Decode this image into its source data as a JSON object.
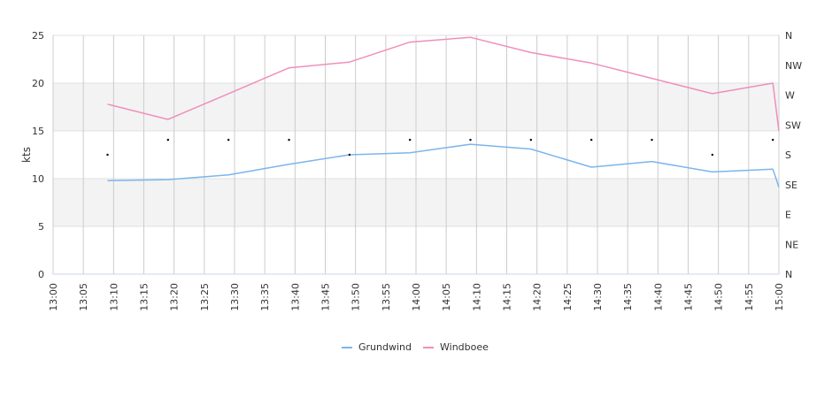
{
  "chart_data": {
    "type": "line",
    "title": "",
    "ylabel": "kts",
    "ylim": [
      0,
      25
    ],
    "y_ticks": [
      "0",
      "5",
      "10",
      "15",
      "20",
      "25"
    ],
    "y2_ticks": [
      "N",
      "NE",
      "E",
      "SE",
      "S",
      "SW",
      "W",
      "NW",
      "N"
    ],
    "x_ticks": [
      "13:00",
      "13:05",
      "13:10",
      "13:15",
      "13:20",
      "13:25",
      "13:30",
      "13:35",
      "13:40",
      "13:45",
      "13:50",
      "13:55",
      "14:00",
      "14:05",
      "14:10",
      "14:15",
      "14:20",
      "14:25",
      "14:30",
      "14:35",
      "14:40",
      "14:45",
      "14:50",
      "14:55",
      "15:00"
    ],
    "x": [
      "13:09",
      "13:19",
      "13:29",
      "13:39",
      "13:49",
      "13:59",
      "14:09",
      "14:19",
      "14:29",
      "14:39",
      "14:49",
      "14:59",
      "15:00"
    ],
    "series": [
      {
        "name": "Grundwind",
        "color": "#7cb5ec",
        "values": [
          9.8,
          9.9,
          10.4,
          11.5,
          12.5,
          12.7,
          13.6,
          13.1,
          11.2,
          11.8,
          10.7,
          11.0,
          9.1
        ]
      },
      {
        "name": "Windboee",
        "color": "#f08fba",
        "values": [
          17.8,
          16.2,
          18.9,
          21.6,
          22.2,
          24.3,
          24.8,
          23.2,
          22.1,
          20.5,
          18.9,
          20.0,
          15.0
        ]
      }
    ],
    "direction": {
      "x": [
        "13:09",
        "13:19",
        "13:29",
        "13:39",
        "13:49",
        "13:59",
        "14:09",
        "14:19",
        "14:29",
        "14:39",
        "14:49",
        "14:59"
      ],
      "values": [
        "S",
        "SSW",
        "SSW",
        "SSW",
        "S",
        "SSW",
        "SSW",
        "SSW",
        "SSW",
        "SSW",
        "S",
        "SSW"
      ]
    },
    "bands": [
      [
        5,
        10
      ],
      [
        15,
        20
      ]
    ],
    "band_color": "#f3f3f3",
    "grid": true,
    "legend_position": "bottom"
  }
}
